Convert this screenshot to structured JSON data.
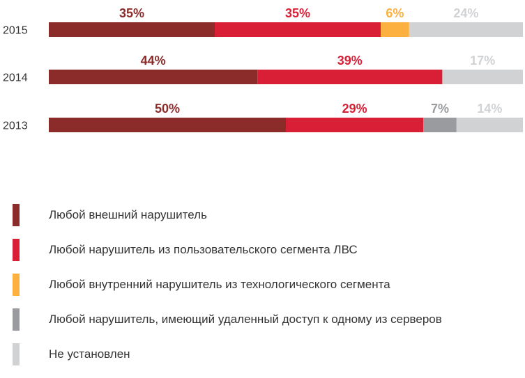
{
  "chart_data": {
    "type": "bar",
    "orientation": "horizontal",
    "stacked": true,
    "percent": true,
    "categories": [
      "2015",
      "2014",
      "2013"
    ],
    "series": [
      {
        "name": "Любой внешний нарушитель",
        "color": "#8b2b2a",
        "values": [
          35,
          44,
          50
        ],
        "labels": [
          "35%",
          "44%",
          "50%"
        ]
      },
      {
        "name": "Любой нарушитель из пользовательского сегмента ЛВС",
        "color": "#d81f36",
        "values": [
          35,
          39,
          29
        ],
        "labels": [
          "35%",
          "39%",
          "29%"
        ]
      },
      {
        "name": "Любой внутренний нарушитель из технологического сегмента",
        "color": "#fbb040",
        "values": [
          6,
          0,
          0
        ],
        "labels": [
          "6%",
          "",
          ""
        ]
      },
      {
        "name": "Любой нарушитель, имеющий удаленный доступ к одному из серверов",
        "color": "#9a9b9e",
        "values": [
          0,
          0,
          7
        ],
        "labels": [
          "",
          "",
          "7%"
        ]
      },
      {
        "name": "Не установлен",
        "color": "#d1d2d4",
        "values": [
          24,
          17,
          14
        ],
        "labels": [
          "24%",
          "17%",
          "14%"
        ]
      }
    ],
    "xlim": [
      0,
      100
    ],
    "grid": false,
    "legend_position": "bottom"
  }
}
